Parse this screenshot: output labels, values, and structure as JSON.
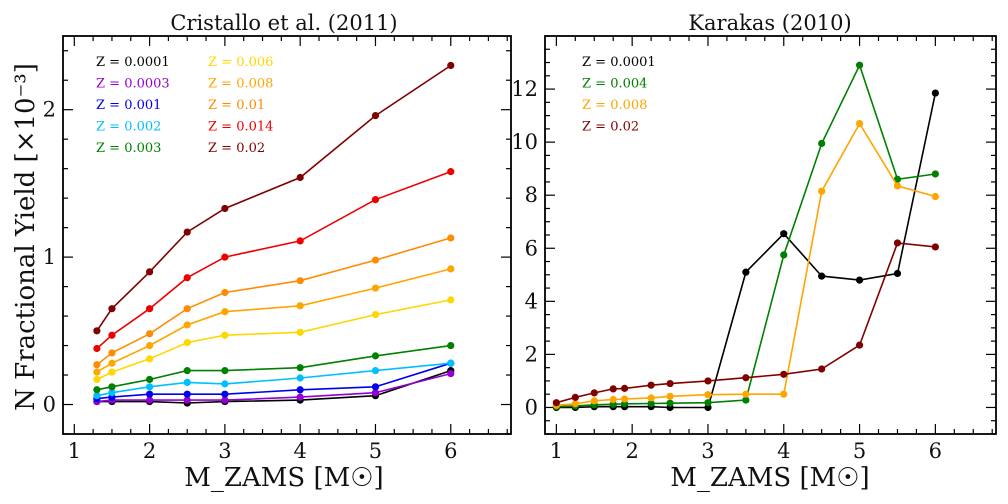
{
  "figure": {
    "ylabel": "N Fractional Yield [×10⁻³]",
    "xlabel": "M_ZAMS [M☉]"
  },
  "chart_data": [
    {
      "type": "line",
      "title": "Cristallo et al. (2011)",
      "xlabel": "M_ZAMS [M☉]",
      "ylabel": "N Fractional Yield [×10⁻³]",
      "xlim": [
        0.85,
        6.8
      ],
      "ylim": [
        -0.2,
        2.5
      ],
      "xticks": [
        1,
        2,
        3,
        4,
        5,
        6
      ],
      "yticks": [
        0,
        1,
        2
      ],
      "legend_position": "top-left",
      "legend_columns": 2,
      "series": [
        {
          "name": "Z = 0.0001",
          "color": "#000000",
          "x": [
            1.3,
            1.5,
            2,
            2.5,
            3,
            4,
            5,
            6
          ],
          "y": [
            0.02,
            0.02,
            0.02,
            0.01,
            0.02,
            0.03,
            0.06,
            0.23
          ]
        },
        {
          "name": "Z = 0.0003",
          "color": "#9400d3",
          "x": [
            1.3,
            1.5,
            2,
            2.5,
            3,
            4,
            5,
            6
          ],
          "y": [
            0.02,
            0.03,
            0.03,
            0.03,
            0.03,
            0.05,
            0.08,
            0.21
          ]
        },
        {
          "name": "Z = 0.001",
          "color": "#0000ee",
          "x": [
            1.3,
            1.5,
            2,
            2.5,
            3,
            4,
            5,
            6
          ],
          "y": [
            0.04,
            0.05,
            0.07,
            0.07,
            0.07,
            0.1,
            0.12,
            0.28
          ]
        },
        {
          "name": "Z = 0.002",
          "color": "#00bfff",
          "x": [
            1.3,
            1.5,
            2,
            2.5,
            3,
            4,
            5,
            6
          ],
          "y": [
            0.06,
            0.08,
            0.12,
            0.15,
            0.14,
            0.18,
            0.23,
            0.28
          ]
        },
        {
          "name": "Z = 0.003",
          "color": "#008000",
          "x": [
            1.3,
            1.5,
            2,
            2.5,
            3,
            4,
            5,
            6
          ],
          "y": [
            0.1,
            0.12,
            0.17,
            0.23,
            0.23,
            0.25,
            0.33,
            0.4
          ]
        },
        {
          "name": "Z = 0.006",
          "color": "#ffd700",
          "x": [
            1.3,
            1.5,
            2,
            2.5,
            3,
            4,
            5,
            6
          ],
          "y": [
            0.17,
            0.22,
            0.31,
            0.42,
            0.47,
            0.49,
            0.61,
            0.71
          ]
        },
        {
          "name": "Z = 0.008",
          "color": "#ffa500",
          "x": [
            1.3,
            1.5,
            2,
            2.5,
            3,
            4,
            5,
            6
          ],
          "y": [
            0.22,
            0.28,
            0.4,
            0.54,
            0.63,
            0.67,
            0.79,
            0.92
          ]
        },
        {
          "name": "Z = 0.01",
          "color": "#ff8c00",
          "x": [
            1.3,
            1.5,
            2,
            2.5,
            3,
            4,
            5,
            6
          ],
          "y": [
            0.27,
            0.35,
            0.48,
            0.65,
            0.76,
            0.84,
            0.98,
            1.13
          ]
        },
        {
          "name": "Z = 0.014",
          "color": "#ee0000",
          "x": [
            1.3,
            1.5,
            2,
            2.5,
            3,
            4,
            5,
            6
          ],
          "y": [
            0.38,
            0.47,
            0.65,
            0.86,
            1.0,
            1.11,
            1.39,
            1.58
          ]
        },
        {
          "name": "Z = 0.02",
          "color": "#800000",
          "x": [
            1.3,
            1.5,
            2,
            2.5,
            3,
            4,
            5,
            6
          ],
          "y": [
            0.5,
            0.65,
            0.9,
            1.17,
            1.33,
            1.54,
            1.96,
            2.3
          ]
        }
      ]
    },
    {
      "type": "line",
      "title": "Karakas (2010)",
      "xlabel": "M_ZAMS [M☉]",
      "ylabel": "",
      "xlim": [
        0.85,
        6.8
      ],
      "ylim": [
        -1.0,
        14.0
      ],
      "xticks": [
        1,
        2,
        3,
        4,
        5,
        6
      ],
      "yticks": [
        0,
        2,
        4,
        6,
        8,
        10,
        12
      ],
      "legend_position": "top-left",
      "legend_columns": 1,
      "series": [
        {
          "name": "Z = 0.0001",
          "color": "#000000",
          "x": [
            1,
            1.25,
            1.5,
            1.75,
            1.9,
            2.25,
            2.5,
            3,
            3.5,
            4,
            4.5,
            5,
            5.5,
            6
          ],
          "y": [
            0.0,
            0.0,
            0.03,
            0.03,
            0.03,
            0.03,
            0.0,
            0.0,
            5.1,
            6.55,
            4.95,
            4.8,
            5.05,
            11.85
          ]
        },
        {
          "name": "Z = 0.004",
          "color": "#008000",
          "x": [
            1,
            1.25,
            1.5,
            1.75,
            1.9,
            2.25,
            2.5,
            3,
            3.5,
            4,
            4.5,
            5,
            5.5,
            6
          ],
          "y": [
            0.03,
            0.06,
            0.1,
            0.12,
            0.14,
            0.15,
            0.16,
            0.18,
            0.28,
            5.75,
            9.95,
            12.9,
            8.6,
            8.8
          ]
        },
        {
          "name": "Z = 0.008",
          "color": "#ffa500",
          "x": [
            1,
            1.25,
            1.5,
            1.75,
            1.9,
            2.25,
            2.5,
            3,
            3.5,
            4,
            4.5,
            5,
            5.5,
            6
          ],
          "y": [
            0.08,
            0.14,
            0.25,
            0.3,
            0.32,
            0.36,
            0.42,
            0.48,
            0.5,
            0.5,
            8.15,
            10.7,
            8.35,
            7.95
          ]
        },
        {
          "name": "Z = 0.02",
          "color": "#800000",
          "x": [
            1,
            1.25,
            1.5,
            1.75,
            1.9,
            2.25,
            2.5,
            3,
            3.5,
            4,
            4.5,
            5,
            5.5,
            6
          ],
          "y": [
            0.18,
            0.38,
            0.55,
            0.7,
            0.72,
            0.84,
            0.9,
            1.0,
            1.12,
            1.25,
            1.45,
            2.35,
            6.2,
            6.05
          ]
        }
      ]
    }
  ]
}
